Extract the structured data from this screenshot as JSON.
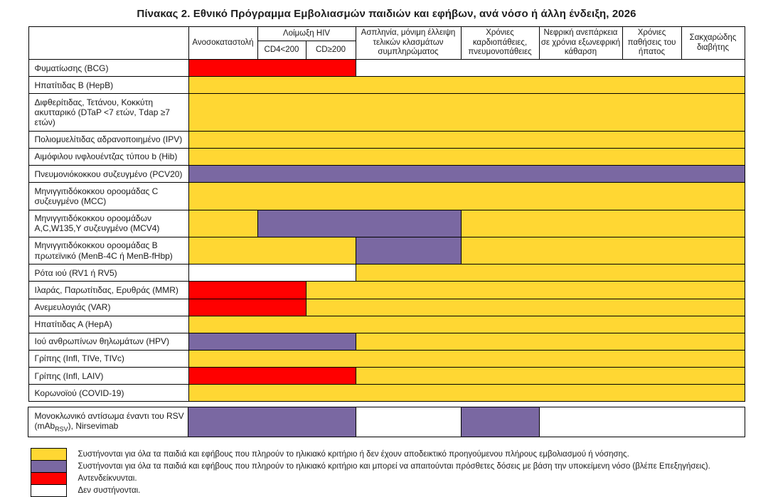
{
  "title": "Πίνακας 2. Εθνικό Πρόγραμμα Εμβολιασμών παιδιών και εφήβων, ανά νόσο ή άλλη ένδειξη, 2026",
  "colors": {
    "yellow": "#FFD733",
    "purple": "#7A68A2",
    "red": "#FF0000",
    "white": "#FFFFFF"
  },
  "table": {
    "hiv_group_label": "Λοίμωξη HIV",
    "columns": [
      {
        "id": "anosokatastoli",
        "label": "Ανοσοκαταστολή"
      },
      {
        "id": "hiv_cd4_low",
        "label": "CD4<200"
      },
      {
        "id": "hiv_cd4_high",
        "label": "CD≥200"
      },
      {
        "id": "asplinia",
        "label": "Ασπληνία, μόνιμη έλλειψη τελικών κλασμάτων συμπληρώματος"
      },
      {
        "id": "cardio_pulmonary",
        "label": "Χρόνιες καρδιοπάθειες, πνευμονοπάθειες"
      },
      {
        "id": "renal",
        "label": "Νεφρική ανεπάρκεια σε χρόνια εξωνεφρική κάθαρση"
      },
      {
        "id": "liver",
        "label": "Χρόνιες παθήσεις του ήπατος"
      },
      {
        "id": "diabetes",
        "label": "Σακχαρώδης διαβήτης"
      }
    ],
    "rows": [
      {
        "label": "Φυματίωσης (BCG)",
        "segments": [
          {
            "color": "red",
            "span": 3
          },
          {
            "color": "white",
            "span": 5
          }
        ]
      },
      {
        "label": "Ηπατίτιδας Β (HepB)",
        "segments": [
          {
            "color": "yellow",
            "span": 8
          }
        ]
      },
      {
        "label": "Διφθερίτιδας, Τετάνου, Κοκκύτη ακυτταρικό (DTaP <7 ετών, Tdap ≥7 ετών)",
        "segments": [
          {
            "color": "yellow",
            "span": 8
          }
        ]
      },
      {
        "label": "Πολιομυελίτιδας αδρανοποιημένο (IPV)",
        "segments": [
          {
            "color": "yellow",
            "span": 8
          }
        ]
      },
      {
        "label": "Αιμόφιλου ινφλουέντζας τύπου b (Hib)",
        "segments": [
          {
            "color": "yellow",
            "span": 8
          }
        ]
      },
      {
        "label": "Πνευμονιόκοκκου συζευγμένο (PCV20)",
        "segments": [
          {
            "color": "purple",
            "span": 8
          }
        ]
      },
      {
        "label": "Μηνιγγιτιδόκοκκου οροομάδας C συζευγμένο (MCC)",
        "segments": [
          {
            "color": "yellow",
            "span": 8
          }
        ]
      },
      {
        "label": "Μηνιγγιτιδόκοκκου οροομάδων A,C,W135,Y συζευγμένο (MCV4)",
        "segments": [
          {
            "color": "yellow",
            "span": 1
          },
          {
            "color": "purple",
            "span": 3
          },
          {
            "color": "yellow",
            "span": 4
          }
        ]
      },
      {
        "label": "Μηνιγγιτιδόκοκκου οροομάδας Β πρωτεϊνικό (MenB-4C ή MenB-fHbp)",
        "segments": [
          {
            "color": "yellow",
            "span": 3
          },
          {
            "color": "purple",
            "span": 1
          },
          {
            "color": "yellow",
            "span": 4
          }
        ]
      },
      {
        "label": "Ρότα ιού (RV1 ή RV5)",
        "segments": [
          {
            "color": "white",
            "span": 3
          },
          {
            "color": "yellow",
            "span": 5
          }
        ]
      },
      {
        "label": "Ιλαράς, Παρωτίτιδας, Ερυθράς (MMR)",
        "segments": [
          {
            "color": "red",
            "span": 2
          },
          {
            "color": "yellow",
            "span": 6
          }
        ]
      },
      {
        "label": "Ανεμευλογιάς (VAR)",
        "segments": [
          {
            "color": "red",
            "span": 2
          },
          {
            "color": "yellow",
            "span": 6
          }
        ]
      },
      {
        "label": "Ηπατίτιδας Α (HepA)",
        "segments": [
          {
            "color": "yellow",
            "span": 8
          }
        ]
      },
      {
        "label": "Ιού ανθρωπίνων θηλωμάτων (HPV)",
        "segments": [
          {
            "color": "purple",
            "span": 3
          },
          {
            "color": "yellow",
            "span": 5
          }
        ]
      },
      {
        "label": "Γρίπης (Infl, TIVe, TIVc)",
        "segments": [
          {
            "color": "yellow",
            "span": 8
          }
        ]
      },
      {
        "label": "Γρίπης (Infl, LAIV)",
        "segments": [
          {
            "color": "red",
            "span": 3
          },
          {
            "color": "yellow",
            "span": 5
          }
        ]
      },
      {
        "label": "Κορωνοϊού (COVID-19)",
        "segments": [
          {
            "color": "yellow",
            "span": 8
          }
        ]
      }
    ],
    "separate_rows": [
      {
        "label_parts": [
          "Μονοκλωνικό αντίσωμα έναντι του RSV (mAb",
          "RSV",
          "), Nirsevimab"
        ],
        "segments": [
          {
            "color": "purple",
            "span": 3
          },
          {
            "color": "white",
            "span": 1
          },
          {
            "color": "purple",
            "span": 1
          },
          {
            "color": "white",
            "span": 3
          }
        ]
      }
    ]
  },
  "legend": [
    {
      "color": "yellow",
      "text": "Συστήνονται για όλα τα παιδιά και εφήβους που  πληρούν το ηλικιακό κριτήριο ή δεν έχουν αποδεικτικό προηγούμενου πλήρους εμβολιασμού ή νόσησης."
    },
    {
      "color": "purple",
      "text": "Συστήνονται για όλα τα παιδιά και εφήβους που πληρούν το ηλικιακό κριτήριο και μπορεί να απαιτούνται πρόσθετες δόσεις με βάση την υποκείμενη νόσο (βλέπε Επεξηγήσεις)."
    },
    {
      "color": "red",
      "text": "Αντενδείκνυνται."
    },
    {
      "color": "white",
      "text": "Δεν συστήνονται."
    }
  ]
}
